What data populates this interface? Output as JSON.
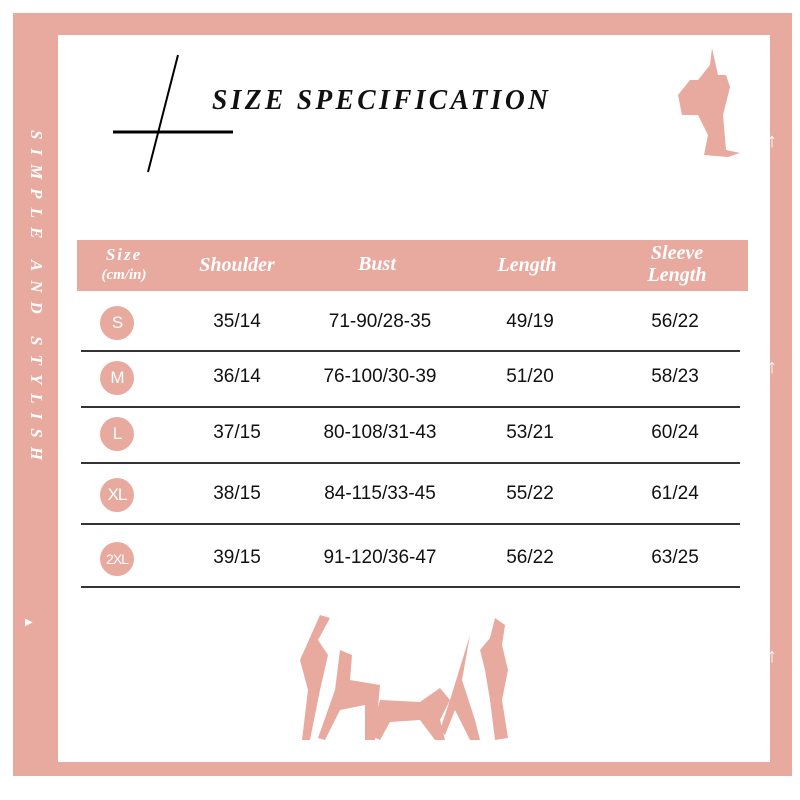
{
  "title": "SIZE SPECIFICATION",
  "side_text": "SIMPLE AND STYLISH",
  "brand_color": "#e8a99e",
  "icons": [
    "arrow-up-icon",
    "triangle-right-icon",
    "yoga-silhouette",
    "group-exercise-silhouette"
  ],
  "table": {
    "headers": {
      "size": "Size",
      "size_unit": "(cm/in)",
      "shoulder": "Shoulder",
      "bust": "Bust",
      "length": "Length",
      "sleeve_1": "Sleeve",
      "sleeve_2": "Length"
    },
    "rows": [
      {
        "size": "S",
        "shoulder": "35/14",
        "bust": "71-90/28-35",
        "length": "49/19",
        "sleeve": "56/22"
      },
      {
        "size": "M",
        "shoulder": "36/14",
        "bust": "76-100/30-39",
        "length": "51/20",
        "sleeve": "58/23"
      },
      {
        "size": "L",
        "shoulder": "37/15",
        "bust": "80-108/31-43",
        "length": "53/21",
        "sleeve": "60/24"
      },
      {
        "size": "XL",
        "shoulder": "38/15",
        "bust": "84-115/33-45",
        "length": "55/22",
        "sleeve": "61/24"
      },
      {
        "size": "2XL",
        "shoulder": "39/15",
        "bust": "91-120/36-47",
        "length": "56/22",
        "sleeve": "63/25"
      }
    ]
  }
}
